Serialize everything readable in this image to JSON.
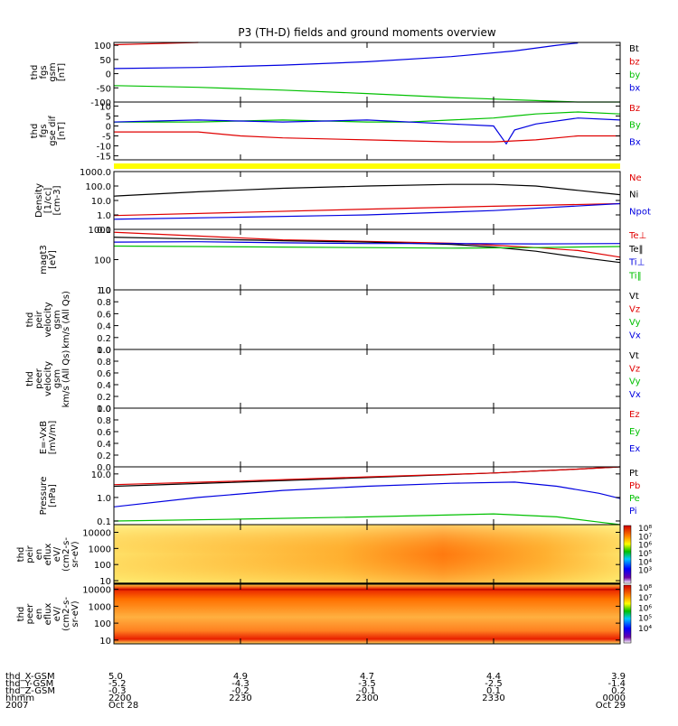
{
  "chart_data": {
    "type": "line",
    "title": "P3 (TH-D) fields and ground moments overview",
    "time_axis": {
      "row_labels": [
        "thd_X-GSM",
        "thd_Y-GSM",
        "thd_Z-GSM",
        "hhmm",
        "2007"
      ],
      "ticks": [
        {
          "x": "5.0",
          "y": "-5.2",
          "z": "-0.3",
          "hhmm": "2200",
          "date": "Oct 28"
        },
        {
          "x": "4.9",
          "y": "-4.3",
          "z": "-0.2",
          "hhmm": "2230",
          "date": ""
        },
        {
          "x": "4.7",
          "y": "-3.5",
          "z": "-0.1",
          "hhmm": "2300",
          "date": ""
        },
        {
          "x": "4.4",
          "y": "-2.5",
          "z": "0.1",
          "hhmm": "2330",
          "date": ""
        },
        {
          "x": "3.9",
          "y": "-1.4",
          "z": "0.2",
          "hhmm": "0000",
          "date": "Oct 29"
        }
      ],
      "range": [
        0,
        120
      ]
    },
    "panels": [
      {
        "id": "fgs_gsm",
        "ylabel": [
          "thd",
          "fgs",
          "gsm",
          "[nT]"
        ],
        "scale": "linear",
        "ylim": [
          -100,
          110
        ],
        "ticks": [
          "100",
          "50",
          "0",
          "-50",
          "-100"
        ],
        "tick_values": [
          100,
          50,
          0,
          -50,
          -100
        ],
        "legend": [
          {
            "label": "Bt",
            "color": "#000000"
          },
          {
            "label": "bz",
            "color": "#e00000"
          },
          {
            "label": "by",
            "color": "#00c000"
          },
          {
            "label": "bx",
            "color": "#0000e0"
          }
        ],
        "series": [
          {
            "name": "bz",
            "color": "#e00000",
            "x": [
              0,
              10,
              20
            ],
            "y": [
              102,
              106,
              110
            ]
          },
          {
            "name": "bx",
            "color": "#0000e0",
            "x": [
              0,
              20,
              40,
              60,
              80,
              95,
              105,
              110
            ],
            "y": [
              18,
              22,
              30,
              42,
              60,
              80,
              100,
              108
            ]
          },
          {
            "name": "by",
            "color": "#00c000",
            "x": [
              0,
              20,
              40,
              60,
              80,
              100,
              110,
              120
            ],
            "y": [
              -42,
              -48,
              -58,
              -70,
              -84,
              -95,
              -100,
              -102
            ]
          }
        ]
      },
      {
        "id": "fgs_gse_dif",
        "ylabel": [
          "thd",
          "fgs",
          "gse dif",
          "[nT]"
        ],
        "scale": "linear",
        "ylim": [
          -17,
          12
        ],
        "ticks": [
          "10",
          "5",
          "0",
          "-5",
          "-10",
          "-15"
        ],
        "tick_values": [
          10,
          5,
          0,
          -5,
          -10,
          -15
        ],
        "legend": [
          {
            "label": "Bz",
            "color": "#e00000"
          },
          {
            "label": "By",
            "color": "#00c000"
          },
          {
            "label": "Bx",
            "color": "#0000e0"
          }
        ],
        "series": [
          {
            "name": "By",
            "color": "#00c000",
            "x": [
              0,
              20,
              40,
              60,
              70,
              80,
              90,
              95,
              100,
              110,
              120
            ],
            "y": [
              2,
              2,
              3,
              2,
              2,
              3,
              4,
              5,
              6,
              7,
              6
            ]
          },
          {
            "name": "Bx",
            "color": "#0000e0",
            "x": [
              0,
              20,
              40,
              60,
              80,
              90,
              93,
              95,
              100,
              110,
              120
            ],
            "y": [
              2,
              3,
              2,
              3,
              1,
              0,
              -9,
              -2,
              1,
              4,
              3
            ]
          },
          {
            "name": "Bz",
            "color": "#e00000",
            "x": [
              0,
              20,
              30,
              40,
              60,
              80,
              90,
              100,
              110,
              120
            ],
            "y": [
              -3,
              -3,
              -5,
              -6,
              -7,
              -8,
              -8,
              -7,
              -5,
              -5
            ]
          }
        ]
      },
      {
        "id": "density",
        "ylabel": [
          "Density",
          "[1/cc]",
          "[cm-3]"
        ],
        "scale": "log",
        "ylim": [
          0.1,
          1000
        ],
        "ticks": [
          "1000.0",
          "100.0",
          "10.0",
          "1.0",
          "0.1"
        ],
        "tick_values": [
          1000,
          100,
          10,
          1,
          0.1
        ],
        "legend": [
          {
            "label": "Ne",
            "color": "#e00000"
          },
          {
            "label": "Ni",
            "color": "#000000"
          },
          {
            "label": "Npot",
            "color": "#0000e0"
          }
        ],
        "series": [
          {
            "name": "Ni",
            "color": "#000000",
            "x": [
              0,
              20,
              40,
              60,
              80,
              90,
              100,
              110,
              120
            ],
            "y": [
              20,
              40,
              70,
              100,
              130,
              130,
              100,
              50,
              25
            ]
          },
          {
            "name": "Ne",
            "color": "#e00000",
            "x": [
              0,
              30,
              60,
              90,
              120
            ],
            "y": [
              0.9,
              1.5,
              2.5,
              4,
              6
            ]
          },
          {
            "name": "Npot",
            "color": "#0000e0",
            "x": [
              0,
              30,
              60,
              90,
              120
            ],
            "y": [
              0.5,
              0.7,
              1.0,
              2.0,
              6
            ]
          }
        ]
      },
      {
        "id": "temperature",
        "ylabel": [
          "magt3",
          "[eV]"
        ],
        "scale": "log",
        "ylim": [
          10,
          1000
        ],
        "ticks": [
          "1000",
          "100",
          "10"
        ],
        "tick_values": [
          1000,
          100,
          10
        ],
        "legend": [
          {
            "label": "Te⊥",
            "color": "#e00000"
          },
          {
            "label": "Te‖",
            "color": "#000000"
          },
          {
            "label": "Ti⊥",
            "color": "#0000e0"
          },
          {
            "label": "Ti‖",
            "color": "#00c000"
          }
        ],
        "series": [
          {
            "name": "Te⊥",
            "color": "#e00000",
            "x": [
              0,
              20,
              40,
              60,
              80,
              90,
              100,
              110,
              120
            ],
            "y": [
              800,
              600,
              450,
              400,
              350,
              300,
              250,
              200,
              120
            ]
          },
          {
            "name": "Te‖",
            "color": "#000000",
            "x": [
              0,
              20,
              40,
              60,
              80,
              90,
              100,
              110,
              120
            ],
            "y": [
              550,
              480,
              420,
              380,
              320,
              260,
              190,
              120,
              80
            ]
          },
          {
            "name": "Ti⊥",
            "color": "#0000e0",
            "x": [
              0,
              20,
              40,
              60,
              80,
              100,
              120
            ],
            "y": [
              380,
              390,
              360,
              340,
              340,
              330,
              340
            ]
          },
          {
            "name": "Ti‖",
            "color": "#00c000",
            "x": [
              0,
              20,
              40,
              60,
              80,
              100,
              120
            ],
            "y": [
              280,
              270,
              260,
              250,
              240,
              250,
              270
            ]
          }
        ]
      },
      {
        "id": "peir_velocity",
        "ylabel": [
          "thd",
          "peir",
          "velocity",
          "gsm",
          "km/s (All Qs)"
        ],
        "scale": "linear",
        "ylim": [
          0,
          1
        ],
        "ticks": [
          "1.0",
          "0.8",
          "0.6",
          "0.4",
          "0.2",
          "0.0"
        ],
        "tick_values": [
          1,
          0.8,
          0.6,
          0.4,
          0.2,
          0
        ],
        "legend": [
          {
            "label": "Vt",
            "color": "#000000"
          },
          {
            "label": "Vz",
            "color": "#e00000"
          },
          {
            "label": "Vy",
            "color": "#00c000"
          },
          {
            "label": "Vx",
            "color": "#0000e0"
          }
        ],
        "series": []
      },
      {
        "id": "peer_velocity",
        "ylabel": [
          "thd",
          "peer",
          "velocity",
          "gsm",
          "km/s (All Qs)"
        ],
        "scale": "linear",
        "ylim": [
          0,
          1
        ],
        "ticks": [
          "1.0",
          "0.8",
          "0.6",
          "0.4",
          "0.2",
          "0.0"
        ],
        "tick_values": [
          1,
          0.8,
          0.6,
          0.4,
          0.2,
          0
        ],
        "legend": [
          {
            "label": "Vt",
            "color": "#000000"
          },
          {
            "label": "Vz",
            "color": "#e00000"
          },
          {
            "label": "Vy",
            "color": "#00c000"
          },
          {
            "label": "Vx",
            "color": "#0000e0"
          }
        ],
        "series": []
      },
      {
        "id": "efield",
        "ylabel": [
          "E=-VxB",
          "[mV/m]"
        ],
        "scale": "linear",
        "ylim": [
          0,
          1
        ],
        "ticks": [
          "1.0",
          "0.8",
          "0.6",
          "0.4",
          "0.2",
          "0.0"
        ],
        "tick_values": [
          1,
          0.8,
          0.6,
          0.4,
          0.2,
          0
        ],
        "legend": [
          {
            "label": "Ez",
            "color": "#e00000"
          },
          {
            "label": "Ey",
            "color": "#00c000"
          },
          {
            "label": "Ex",
            "color": "#0000e0"
          }
        ],
        "series": []
      },
      {
        "id": "pressure",
        "ylabel": [
          "Pressure",
          "[nPa]"
        ],
        "scale": "log",
        "ylim": [
          0.07,
          20
        ],
        "ticks": [
          "10.0",
          "1.0",
          "0.1"
        ],
        "tick_values": [
          10,
          1,
          0.1
        ],
        "legend": [
          {
            "label": "Pt",
            "color": "#000000"
          },
          {
            "label": "Pb",
            "color": "#e00000"
          },
          {
            "label": "Pe",
            "color": "#00c000"
          },
          {
            "label": "Pi",
            "color": "#0000e0"
          }
        ],
        "series": [
          {
            "name": "Pt",
            "color": "#000000",
            "x": [
              0,
              30,
              60,
              90,
              110,
              120
            ],
            "y": [
              3,
              4.5,
              7,
              11,
              16,
              20
            ]
          },
          {
            "name": "Pb",
            "color": "#e00000",
            "x": [
              0,
              30,
              60,
              90,
              110,
              120
            ],
            "y": [
              3.5,
              5,
              7.5,
              11,
              16,
              20
            ]
          },
          {
            "name": "Pi",
            "color": "#0000e0",
            "x": [
              0,
              20,
              40,
              60,
              80,
              95,
              105,
              115,
              120
            ],
            "y": [
              0.4,
              1.0,
              2.0,
              3.0,
              4.0,
              4.5,
              3.0,
              1.5,
              0.9
            ]
          },
          {
            "name": "Pe",
            "color": "#00c000",
            "x": [
              0,
              30,
              60,
              90,
              105,
              115,
              120
            ],
            "y": [
              0.1,
              0.12,
              0.15,
              0.2,
              0.15,
              0.09,
              0.07
            ]
          }
        ]
      },
      {
        "id": "peir_efflux",
        "type": "heatmap",
        "ylabel": [
          "thd",
          "peir",
          "en",
          "eflux",
          "eV/",
          "(cm2-s-",
          "sr-eV)"
        ],
        "scale": "log",
        "ylim": [
          6,
          30000
        ],
        "ticks": [
          "10000",
          "1000",
          "100",
          "10"
        ],
        "tick_values": [
          10000,
          1000,
          100,
          10
        ],
        "colorbar": {
          "ticks": [
            "10⁸",
            "10⁷",
            "10⁶",
            "10⁵",
            "10⁴",
            "10³"
          ]
        }
      },
      {
        "id": "peer_efflux",
        "type": "heatmap",
        "ylabel": [
          "thd",
          "peer",
          "en",
          "eflux",
          "eV/",
          "(cm2-s-",
          "sr-eV)"
        ],
        "scale": "log",
        "ylim": [
          6,
          20000
        ],
        "ticks": [
          "10000",
          "1000",
          "100",
          "10"
        ],
        "tick_values": [
          10000,
          1000,
          100,
          10
        ],
        "colorbar": {
          "ticks": [
            "10⁸",
            "10⁷",
            "10⁶",
            "10⁵",
            "10⁴"
          ]
        }
      }
    ]
  }
}
